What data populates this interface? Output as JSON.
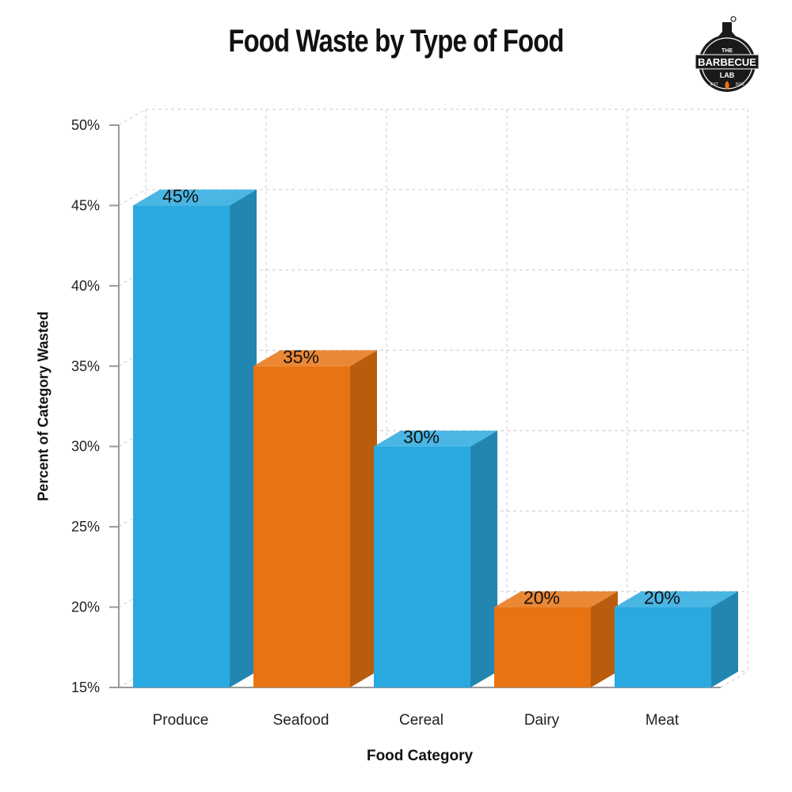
{
  "chart_data": {
    "type": "bar",
    "title": "Food Waste by Type of Food",
    "xlabel": "Food Category",
    "ylabel": "Percent of Category Wasted",
    "categories": [
      "Produce",
      "Seafood",
      "Cereal",
      "Dairy",
      "Meat"
    ],
    "values": [
      45,
      35,
      30,
      20,
      20
    ],
    "value_labels": [
      "45%",
      "35%",
      "30%",
      "20%",
      "20%"
    ],
    "bar_colors": [
      "#29a9df",
      "#e87312",
      "#29a9df",
      "#e87312",
      "#29a9df"
    ],
    "ylim": [
      15,
      50
    ],
    "yticks": [
      15,
      20,
      25,
      30,
      35,
      40,
      45,
      50
    ],
    "ytick_labels": [
      "15%",
      "20%",
      "25%",
      "30%",
      "35%",
      "40%",
      "45%",
      "50%"
    ],
    "grid": true,
    "style": "3d-bar"
  },
  "logo": {
    "name": "barbecue-lab-logo",
    "top_text": "THE",
    "main_text": "BARBECUE",
    "sub_text": "LAB",
    "est_text": "EST",
    "year_text": "2016"
  }
}
